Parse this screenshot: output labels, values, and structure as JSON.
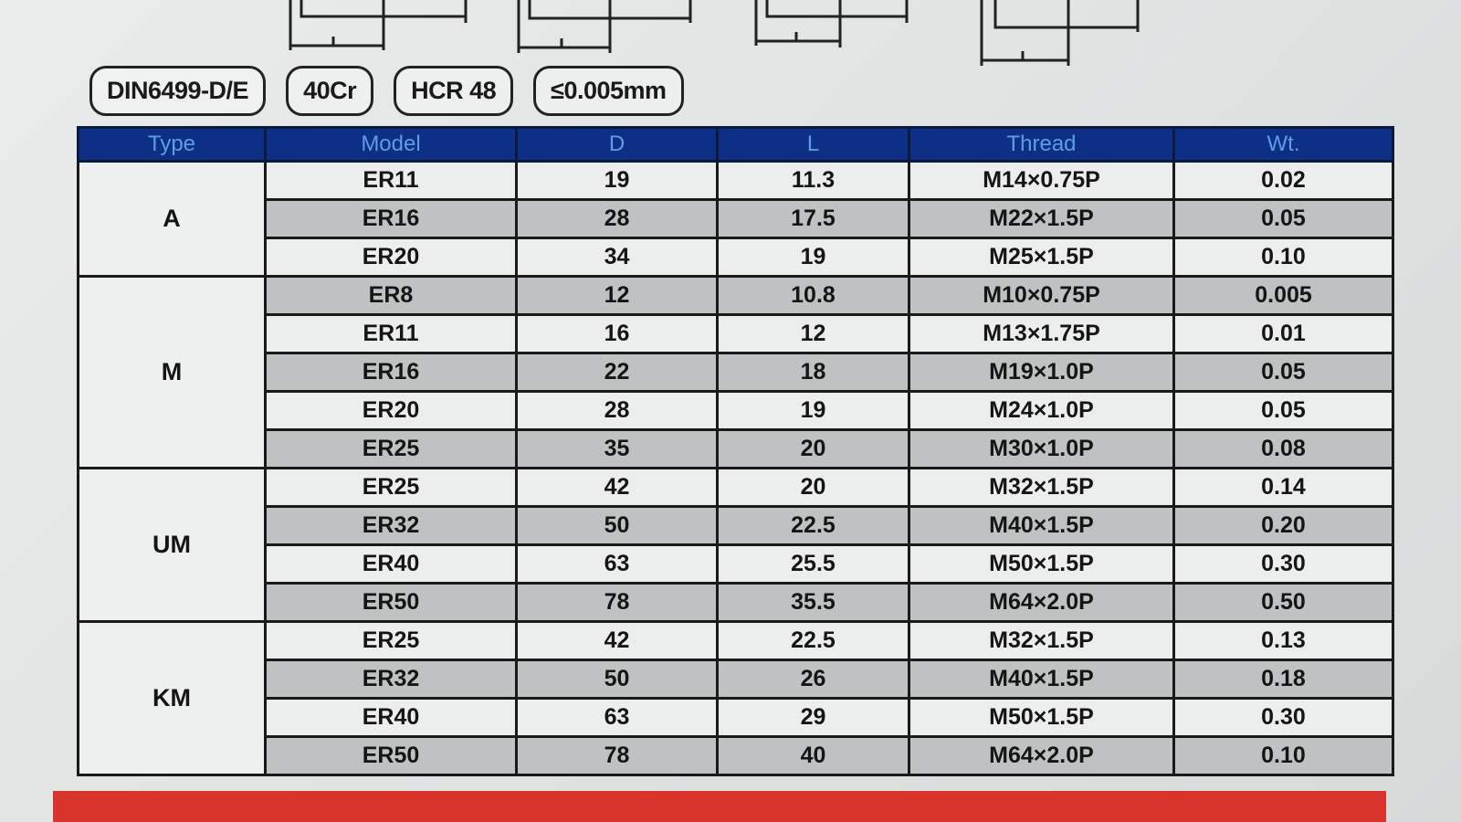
{
  "badges": [
    "DIN6499-D/E",
    "40Cr",
    "HCR 48",
    "≤0.005mm"
  ],
  "table": {
    "headers": [
      "Type",
      "Model",
      "D",
      "L",
      "Thread",
      "Wt."
    ],
    "groups": [
      {
        "type": "A",
        "rows": [
          [
            "ER11",
            "19",
            "11.3",
            "M14×0.75P",
            "0.02"
          ],
          [
            "ER16",
            "28",
            "17.5",
            "M22×1.5P",
            "0.05"
          ],
          [
            "ER20",
            "34",
            "19",
            "M25×1.5P",
            "0.10"
          ]
        ]
      },
      {
        "type": "M",
        "rows": [
          [
            "ER8",
            "12",
            "10.8",
            "M10×0.75P",
            "0.005"
          ],
          [
            "ER11",
            "16",
            "12",
            "M13×1.75P",
            "0.01"
          ],
          [
            "ER16",
            "22",
            "18",
            "M19×1.0P",
            "0.05"
          ],
          [
            "ER20",
            "28",
            "19",
            "M24×1.0P",
            "0.05"
          ],
          [
            "ER25",
            "35",
            "20",
            "M30×1.0P",
            "0.08"
          ]
        ]
      },
      {
        "type": "UM",
        "rows": [
          [
            "ER25",
            "42",
            "20",
            "M32×1.5P",
            "0.14"
          ],
          [
            "ER32",
            "50",
            "22.5",
            "M40×1.5P",
            "0.20"
          ],
          [
            "ER40",
            "63",
            "25.5",
            "M50×1.5P",
            "0.30"
          ],
          [
            "ER50",
            "78",
            "35.5",
            "M64×2.0P",
            "0.50"
          ]
        ]
      },
      {
        "type": "KM",
        "rows": [
          [
            "ER25",
            "42",
            "22.5",
            "M32×1.5P",
            "0.13"
          ],
          [
            "ER32",
            "50",
            "26",
            "M40×1.5P",
            "0.18"
          ],
          [
            "ER40",
            "63",
            "29",
            "M50×1.5P",
            "0.30"
          ],
          [
            "ER50",
            "78",
            "40",
            "M64×2.0P",
            "0.10"
          ]
        ]
      }
    ]
  },
  "colors": {
    "header_bg": "#0e2f86",
    "header_text": "#5d9de6",
    "alt_row": "#bfc2c2",
    "bottom_bar": "#d8342c"
  }
}
